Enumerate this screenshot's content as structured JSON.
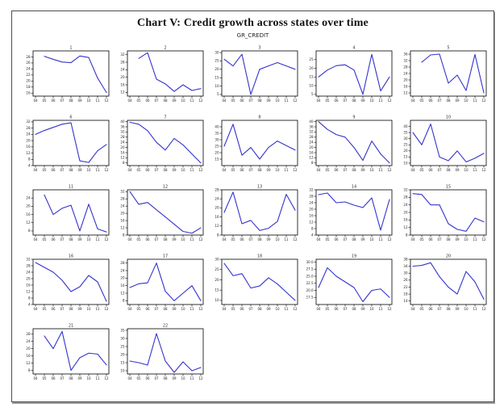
{
  "colors": {
    "line": "#3333cc",
    "axis": "#000000",
    "frame_border": "#4d4d4d",
    "background": "#ffffff",
    "tick_text": "#222222"
  },
  "chart_data": {
    "type": "line",
    "title": "Chart V: Credit growth across states over time",
    "subtitle": "GR_CREDIT",
    "layout": "grid of 22 small-multiple line charts, 5 per row, legend off, one blue series per panel",
    "x": [
      "04",
      "05",
      "06",
      "07",
      "08",
      "09",
      "10",
      "11",
      "12"
    ],
    "panels": [
      {
        "label": "1",
        "ylim": [
          15,
          30
        ],
        "yticks": [
          16,
          18,
          20,
          22,
          24,
          26,
          28
        ],
        "values": [
          null,
          28.2,
          27.2,
          26.3,
          26.1,
          28.3,
          27.8,
          21,
          16.2
        ]
      },
      {
        "label": "2",
        "ylim": [
          10,
          34
        ],
        "yticks": [
          12,
          16,
          20,
          24,
          28,
          32
        ],
        "values": [
          null,
          30,
          33,
          19,
          16.5,
          12.5,
          16,
          13,
          14
        ]
      },
      {
        "label": "3",
        "ylim": [
          4,
          31
        ],
        "yticks": [
          5,
          10,
          15,
          20,
          25,
          30
        ],
        "values": [
          26,
          22,
          29,
          5,
          20,
          22,
          24,
          22,
          20
        ]
      },
      {
        "label": "4",
        "ylim": [
          4,
          30
        ],
        "yticks": [
          5,
          10,
          15,
          20,
          25
        ],
        "values": [
          15,
          19,
          21.5,
          22,
          19,
          5,
          28,
          7,
          15
        ]
      },
      {
        "label": "5",
        "ylim": [
          10,
          38
        ],
        "yticks": [
          12,
          16,
          20,
          24,
          28,
          32,
          36
        ],
        "values": [
          null,
          31,
          35.5,
          36,
          18,
          23,
          13.5,
          35.8,
          12
        ]
      },
      {
        "label": "6",
        "ylim": [
          4,
          33
        ],
        "yticks": [
          4,
          8,
          12,
          16,
          20,
          24,
          28,
          32
        ],
        "values": [
          24,
          26.5,
          28.5,
          30.5,
          31.5,
          7,
          6,
          13.5,
          17.5
        ]
      },
      {
        "label": "7",
        "ylim": [
          6,
          41
        ],
        "yticks": [
          8,
          12,
          16,
          20,
          24,
          28,
          32,
          36,
          40
        ],
        "values": [
          39.5,
          38,
          33,
          24,
          18,
          27,
          22,
          15,
          8
        ]
      },
      {
        "label": "8",
        "ylim": [
          10,
          45
        ],
        "yticks": [
          15,
          20,
          25,
          30,
          35,
          40
        ],
        "values": [
          25,
          42,
          18,
          24,
          15,
          24,
          29,
          25.5,
          22
        ]
      },
      {
        "label": "9",
        "ylim": [
          6,
          41
        ],
        "yticks": [
          8,
          12,
          16,
          20,
          24,
          28,
          32,
          36,
          40
        ],
        "values": [
          40,
          34,
          30,
          28,
          20,
          10,
          25,
          15,
          8
        ]
      },
      {
        "label": "10",
        "ylim": [
          8,
          45
        ],
        "yticks": [
          10,
          15,
          20,
          25,
          30,
          35,
          40
        ],
        "values": [
          35,
          25,
          42,
          15,
          12,
          20,
          11,
          14,
          18
        ]
      },
      {
        "label": "11",
        "ylim": [
          6,
          28
        ],
        "yticks": [
          8,
          12,
          16,
          20,
          24
        ],
        "values": [
          null,
          25.5,
          16,
          19,
          20.5,
          8,
          21,
          9,
          7.5
        ]
      },
      {
        "label": "12",
        "ylim": [
          8,
          33
        ],
        "yticks": [
          8,
          12,
          16,
          20,
          24,
          28,
          32
        ],
        "values": [
          32,
          25,
          26,
          22,
          18,
          14,
          10,
          9,
          12
        ]
      },
      {
        "label": "13",
        "ylim": [
          8,
          28
        ],
        "yticks": [
          8,
          12,
          16,
          20,
          24,
          28
        ],
        "values": [
          18,
          27,
          13,
          14.5,
          10,
          11,
          14,
          26,
          19
        ]
      },
      {
        "label": "14",
        "ylim": [
          4,
          32
        ],
        "yticks": [
          4,
          8,
          12,
          16,
          20,
          24,
          28,
          32
        ],
        "values": [
          29,
          30,
          24,
          24.5,
          22.5,
          21,
          27,
          7,
          26
        ]
      },
      {
        "label": "15",
        "ylim": [
          8,
          32
        ],
        "yticks": [
          8,
          12,
          16,
          20,
          24,
          28,
          32
        ],
        "values": [
          30,
          29.5,
          24,
          24,
          14,
          11,
          10,
          17,
          15
        ]
      },
      {
        "label": "16",
        "ylim": [
          4,
          32
        ],
        "yticks": [
          4,
          8,
          12,
          16,
          20,
          24,
          28,
          32
        ],
        "values": [
          30,
          27,
          24,
          19,
          12,
          15,
          22,
          18,
          6
        ]
      },
      {
        "label": "17",
        "ylim": [
          6,
          30
        ],
        "yticks": [
          8,
          12,
          16,
          20,
          24,
          28
        ],
        "values": [
          15,
          17,
          17.5,
          28,
          13,
          8,
          12,
          16,
          8
        ]
      },
      {
        "label": "18",
        "ylim": [
          8,
          30
        ],
        "yticks": [
          10,
          15,
          20,
          25,
          30
        ],
        "values": [
          28,
          22,
          23,
          16,
          17,
          21,
          18,
          14,
          10
        ]
      },
      {
        "label": "19",
        "ylim": [
          15,
          31
        ],
        "yticks": [
          17.5,
          20,
          22.5,
          25,
          27.5,
          30
        ],
        "tick_decimals": 1,
        "values": [
          21,
          28,
          25,
          23,
          21,
          16,
          20,
          20.5,
          17.5
        ]
      },
      {
        "label": "20",
        "ylim": [
          12,
          38
        ],
        "yticks": [
          14,
          18,
          22,
          26,
          30,
          34,
          38
        ],
        "values": [
          34,
          34.5,
          36,
          28,
          22,
          18,
          31,
          25,
          15
        ]
      },
      {
        "label": "21",
        "ylim": [
          6,
          31
        ],
        "yticks": [
          8,
          12,
          16,
          20,
          24,
          28
        ],
        "values": [
          null,
          27,
          20,
          29.5,
          8,
          15,
          17.5,
          17,
          11
        ]
      },
      {
        "label": "22",
        "ylim": [
          8,
          36
        ],
        "yticks": [
          10,
          15,
          20,
          25,
          30,
          35
        ],
        "values": [
          16,
          15,
          13.5,
          33,
          16,
          9,
          15.5,
          10,
          12
        ]
      }
    ]
  }
}
